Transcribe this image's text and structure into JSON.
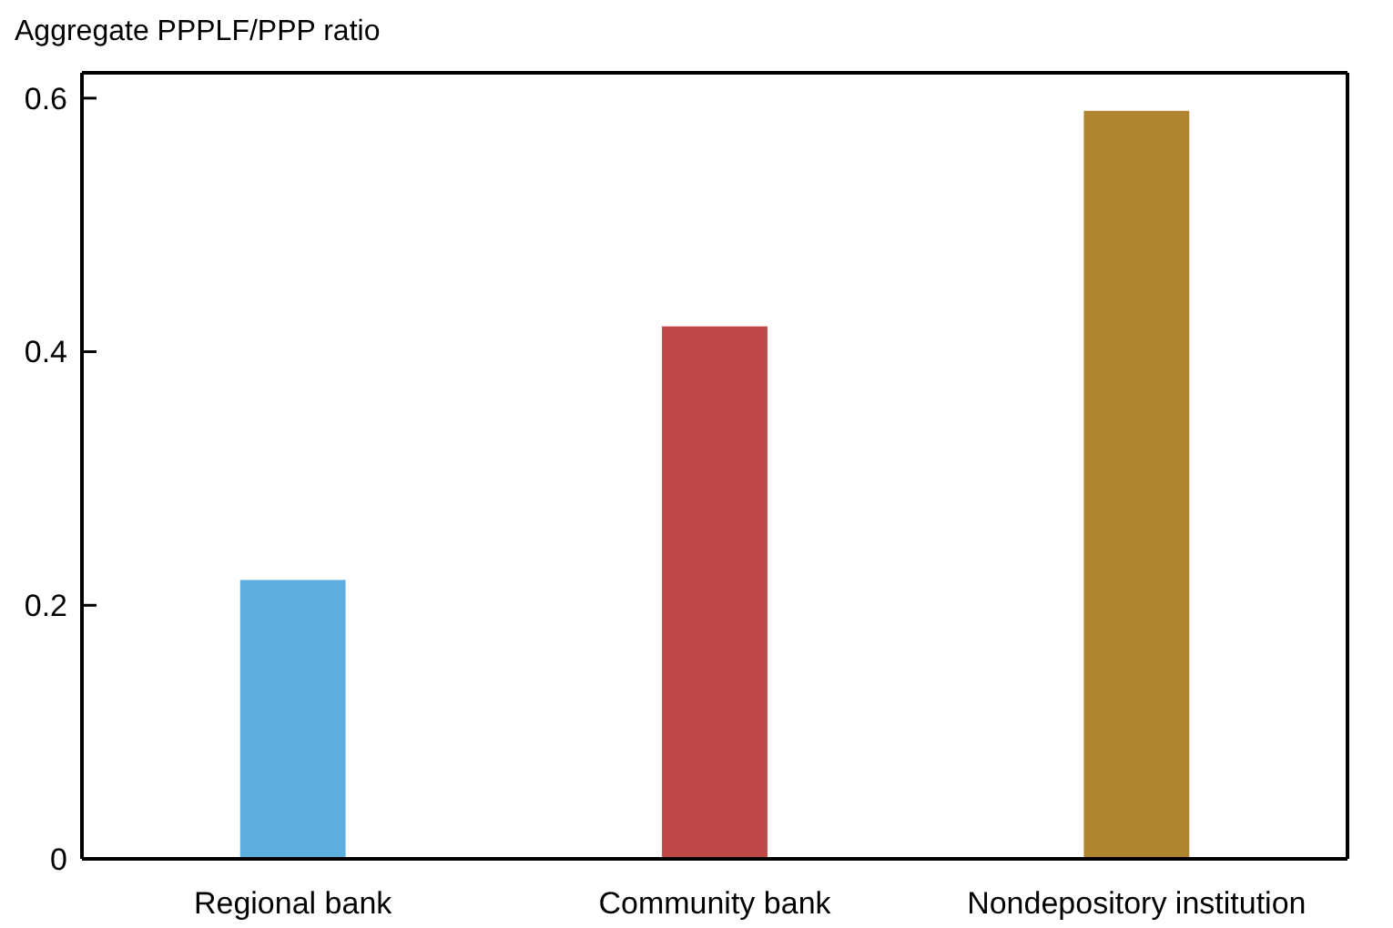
{
  "chart_data": {
    "type": "bar",
    "ylabel": "Aggregate PPPLF/PPP ratio",
    "categories": [
      "Regional bank",
      "Community bank",
      "Nondepository institution"
    ],
    "values": [
      0.22,
      0.42,
      0.59
    ],
    "colors": [
      "#5faee0",
      "#bf4848",
      "#b0852f"
    ],
    "ylim": [
      0,
      0.62
    ],
    "yticks": [
      0,
      0.2,
      0.4,
      0.6
    ],
    "grid": false
  }
}
